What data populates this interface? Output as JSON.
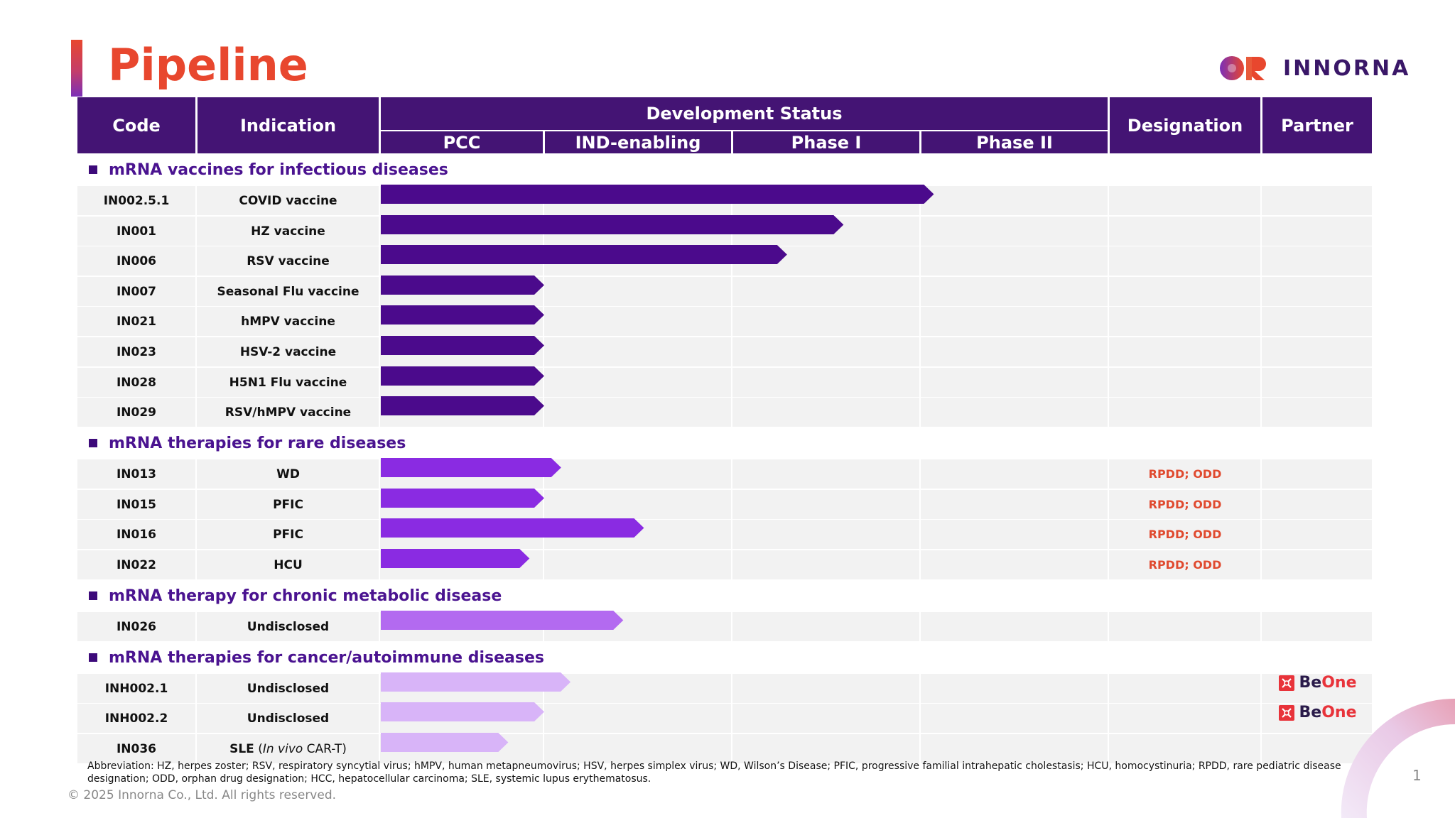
{
  "page": {
    "title": "Pipeline",
    "company": "INNORNA",
    "footnote": "Abbreviation: HZ, herpes zoster; RSV, respiratory syncytial virus; hMPV, human metapneumovirus; HSV, herpes simplex virus; WD, Wilson’s Disease; PFIC, progressive familial intrahepatic cholestasis; HCU, homocystinuria; RPDD, rare pediatric disease designation; ODD, orphan drug designation; HCC, hepatocellular carcinoma;  SLE, systemic lupus erythematosus.",
    "copyright": "© 2025 Innorna Co., Ltd. All rights reserved.",
    "page_number": "1"
  },
  "header": {
    "code": "Code",
    "indication": "Indication",
    "development_status": "Development Status",
    "phases": [
      "PCC",
      "IND-enabling",
      "Phase I",
      "Phase II"
    ],
    "designation": "Designation",
    "partner": "Partner"
  },
  "colors": {
    "header": "#441474",
    "infectious": "#4b0a8c",
    "rare": "#8a2be2",
    "metabolic": "#b36af0",
    "cancer": "#d8b4f8",
    "designation": "#e04a2f",
    "title": "#e8472e"
  },
  "chart_data": {
    "type": "table",
    "progress_scale": "0 = start of PCC, 1 = end of PCC, 2 = end of IND-enabling, 3 = end of Phase I, 4 = end of Phase II",
    "sections": [
      {
        "name": "mRNA vaccines for infectious diseases",
        "color_key": "infectious",
        "rows": [
          {
            "code": "IN002.5.1",
            "indication": "COVID vaccine",
            "progress": 3.07,
            "designation": "",
            "partner": ""
          },
          {
            "code": "IN001",
            "indication": "HZ vaccine",
            "progress": 2.59,
            "designation": "",
            "partner": ""
          },
          {
            "code": "IN006",
            "indication": "RSV vaccine",
            "progress": 2.29,
            "designation": "",
            "partner": ""
          },
          {
            "code": "IN007",
            "indication": "Seasonal Flu vaccine",
            "progress": 1.0,
            "designation": "",
            "partner": ""
          },
          {
            "code": "IN021",
            "indication": "hMPV vaccine",
            "progress": 1.0,
            "designation": "",
            "partner": ""
          },
          {
            "code": "IN023",
            "indication": "HSV-2 vaccine",
            "progress": 1.0,
            "designation": "",
            "partner": ""
          },
          {
            "code": "IN028",
            "indication": "H5N1 Flu vaccine",
            "progress": 1.0,
            "designation": "",
            "partner": ""
          },
          {
            "code": "IN029",
            "indication": "RSV/hMPV vaccine",
            "progress": 1.0,
            "designation": "",
            "partner": ""
          }
        ]
      },
      {
        "name": "mRNA therapies for rare diseases",
        "color_key": "rare",
        "rows": [
          {
            "code": "IN013",
            "indication": "WD",
            "progress": 1.09,
            "designation": "RPDD; ODD",
            "partner": ""
          },
          {
            "code": "IN015",
            "indication": "PFIC",
            "progress": 1.0,
            "designation": "RPDD; ODD",
            "partner": ""
          },
          {
            "code": "IN016",
            "indication": "PFIC",
            "progress": 1.53,
            "designation": "RPDD; ODD",
            "partner": ""
          },
          {
            "code": "IN022",
            "indication": "HCU",
            "progress": 0.91,
            "designation": "RPDD; ODD",
            "partner": ""
          }
        ]
      },
      {
        "name": "mRNA therapy for chronic metabolic disease",
        "color_key": "metabolic",
        "rows": [
          {
            "code": "IN026",
            "indication": "Undisclosed",
            "progress": 1.42,
            "designation": "",
            "partner": ""
          }
        ]
      },
      {
        "name": "mRNA therapies for cancer/autoimmune diseases",
        "color_key": "cancer",
        "rows": [
          {
            "code": "INH002.1",
            "indication": "Undisclosed",
            "progress": 1.14,
            "designation": "",
            "partner": "BeOne"
          },
          {
            "code": "INH002.2",
            "indication": "Undisclosed",
            "progress": 1.0,
            "designation": "",
            "partner": "BeOne"
          },
          {
            "code": "IN036",
            "indication": "SLE",
            "indication_note": "In vivo",
            "indication_suffix": "CAR-T",
            "progress": 0.78,
            "designation": "",
            "partner": ""
          }
        ]
      }
    ]
  }
}
